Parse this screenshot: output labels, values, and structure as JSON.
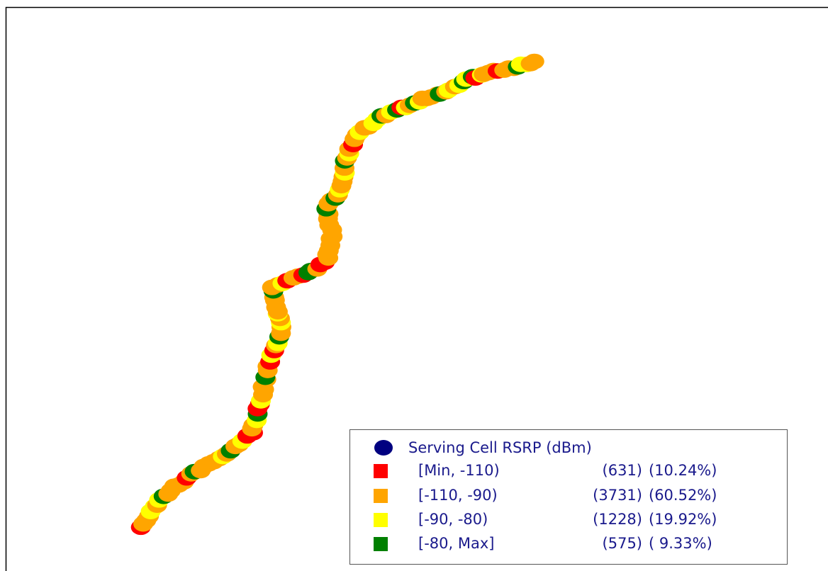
{
  "legend": {
    "title": "Serving Cell RSRP (dBm)",
    "title_color": "#000080",
    "items": [
      {
        "range": "[Min, -110)",
        "count": "(631)",
        "percent": "(10.24%)",
        "color": "#ff0000"
      },
      {
        "range": "[-110, -90)",
        "count": "(3731)",
        "percent": "(60.52%)",
        "color": "#ffa500"
      },
      {
        "range": "[-90, -80)",
        "count": "(1228)",
        "percent": "(19.92%)",
        "color": "#ffff00"
      },
      {
        "range": "[-80, Max]",
        "count": "(575)",
        "percent": "( 9.33%)",
        "color": "#008000"
      }
    ]
  }
}
